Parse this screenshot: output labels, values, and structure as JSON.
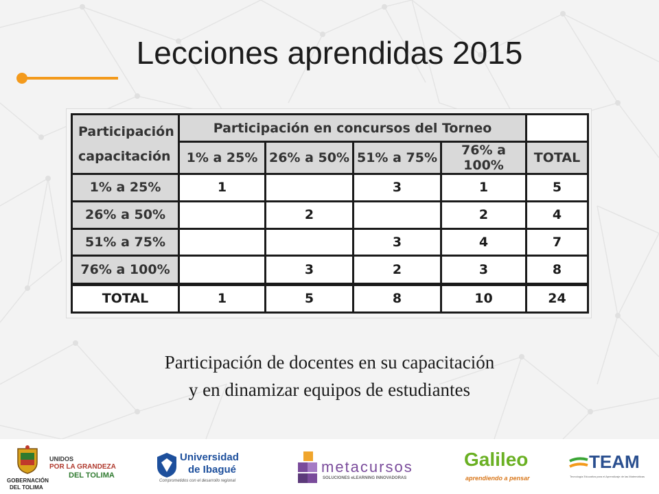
{
  "slide": {
    "title": "Lecciones aprendidas 2015",
    "caption_line1": "Participación de docentes en su capacitación",
    "caption_line2": "y en dinamizar equipos de estudiantes"
  },
  "table": {
    "row_header_line1": "Participación",
    "row_header_line2": "capacitación",
    "col_group_header": "Participación en concursos del Torneo",
    "columns": [
      "1% a 25%",
      "26% a 50%",
      "51% a 75%",
      "76% a 100%",
      "TOTAL"
    ],
    "rows": [
      {
        "label": "1% a 25%",
        "cells": [
          "1",
          "",
          "3",
          "1",
          "5"
        ]
      },
      {
        "label": "26% a 50%",
        "cells": [
          "",
          "2",
          "",
          "2",
          "4"
        ]
      },
      {
        "label": "51% a 75%",
        "cells": [
          "",
          "",
          "3",
          "4",
          "7"
        ]
      },
      {
        "label": "76% a 100%",
        "cells": [
          "",
          "3",
          "2",
          "3",
          "8"
        ]
      }
    ],
    "total_row": {
      "label": "TOTAL",
      "cells": [
        "1",
        "5",
        "8",
        "10",
        "24"
      ]
    }
  },
  "footer": {
    "gobernacion_line1": "GOBERNACIÓN",
    "gobernacion_line2": "DEL TOLIMA",
    "unidos_line1": "UNIDOS",
    "unidos_line2": "POR LA GRANDEZA",
    "unidos_line3": "DEL TOLIMA",
    "universidad_line1": "Universidad",
    "universidad_line2": "de Ibagué",
    "universidad_tagline": "Comprometidos con el desarrollo regional",
    "metacursos_name": "metacursos",
    "metacursos_tagline": "SOLUCIONES eLEARNING INNOVADORAS",
    "galileo_name": "Galileo",
    "galileo_tagline": "aprendiendo a pensar",
    "team_name": "TEAM",
    "team_tagline": "Tecnología Educativa para el Aprendizaje de las Matemáticas"
  },
  "colors": {
    "accent": "#f39a1c",
    "header_gray": "#d9d9d9",
    "team_green": "#3aa535",
    "galileo_green": "#6ab023",
    "unibague_blue": "#1d4f9c",
    "metacursos_purple": "#7a4b9b"
  }
}
